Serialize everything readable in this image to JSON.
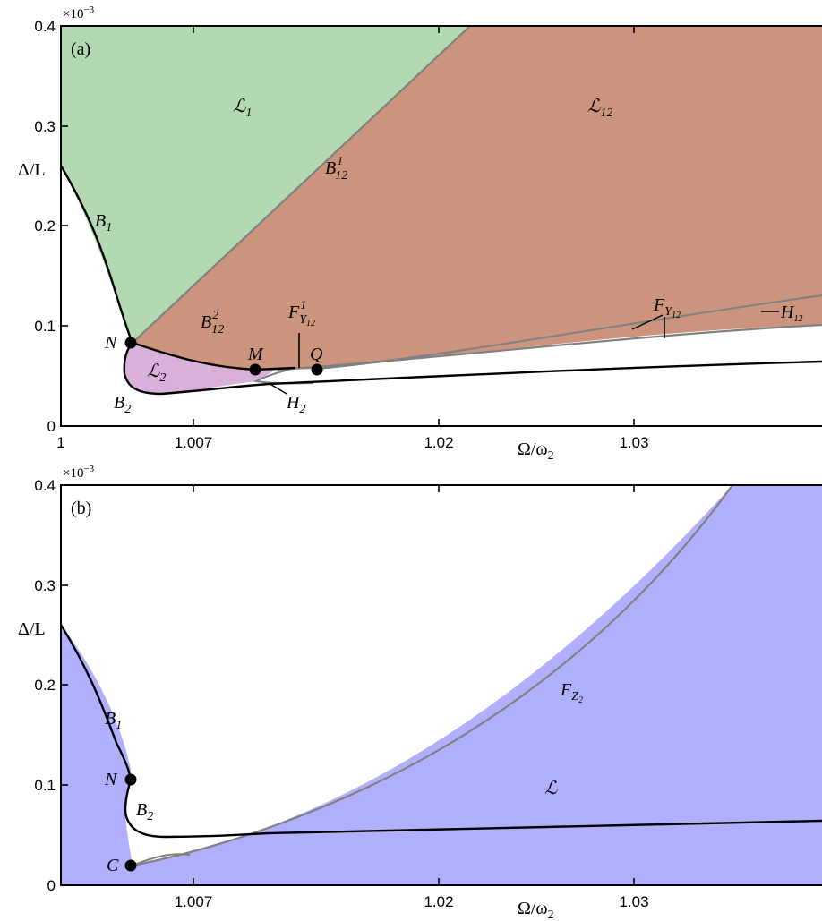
{
  "chart_data": [
    {
      "panel": "(a)",
      "type": "area",
      "x_ticks": [
        "1",
        "1.007",
        "1.02",
        "1.03"
      ],
      "y_ticks": [
        "0",
        "0.1",
        "0.2",
        "0.3",
        "0.4"
      ],
      "y_exponent": "×10",
      "y_exponent_power": "−3",
      "xlabel": "Ω/ω",
      "xlabel_sub": "2",
      "ylabel": "Δ/L",
      "ylim": [
        0,
        0.4
      ],
      "regions": [
        {
          "name": "L1",
          "label": "ℒ",
          "sub": "1",
          "color": "#b3d9b3"
        },
        {
          "name": "L12",
          "label": "ℒ",
          "sub": "12",
          "color": "#cc947d"
        },
        {
          "name": "L2",
          "label": "ℒ",
          "sub": "2",
          "color": "#d9b0d9"
        }
      ],
      "curves": [
        {
          "name": "B1",
          "label": "B",
          "sub": "1",
          "color": "#000000"
        },
        {
          "name": "B2",
          "label": "B",
          "sub": "2",
          "color": "#000000"
        },
        {
          "name": "B12-1",
          "label": "B",
          "sub": "12",
          "sup": "1",
          "color": "#808080"
        },
        {
          "name": "B12-2",
          "label": "B",
          "sub": "12",
          "sup": "2",
          "color": "#000000"
        },
        {
          "name": "FY12",
          "label": "F",
          "sub": "Y",
          "subsub": "12",
          "color": "#808080"
        },
        {
          "name": "FY12-1",
          "label": "F",
          "sub": "Y",
          "subsub": "12",
          "sup": "1",
          "color": "#000000"
        },
        {
          "name": "H2",
          "label": "H",
          "sub": "2",
          "color": "#808080"
        },
        {
          "name": "H12",
          "label": "H",
          "sub": "12",
          "color": "#808080"
        }
      ],
      "points": [
        {
          "label": "N",
          "x": 1.0035,
          "y": 0.081
        },
        {
          "label": "M",
          "x": 1.01,
          "y": 0.0555
        },
        {
          "label": "Q",
          "x": 1.0132,
          "y": 0.0555
        }
      ]
    },
    {
      "panel": "(b)",
      "type": "area",
      "x_ticks": [
        "1.007",
        "1.02",
        "1.03"
      ],
      "y_ticks": [
        "0",
        "0.1",
        "0.2",
        "0.3",
        "0.4"
      ],
      "y_exponent": "×10",
      "y_exponent_power": "−3",
      "xlabel": "Ω/ω",
      "xlabel_sub": "2",
      "ylabel": "Δ/L",
      "ylim": [
        0,
        0.4
      ],
      "regions": [
        {
          "name": "L",
          "label": "ℒ",
          "color": "#b0b0ff"
        }
      ],
      "curves": [
        {
          "name": "B1",
          "label": "B",
          "sub": "1",
          "color": "#000000"
        },
        {
          "name": "B2",
          "label": "B",
          "sub": "2",
          "color": "#000000"
        },
        {
          "name": "FZ2",
          "label": "F",
          "sub": "Z",
          "subsub": "2",
          "color": "#808080"
        }
      ],
      "points": [
        {
          "label": "N",
          "x": 1.0036,
          "y": 0.081
        },
        {
          "label": "C",
          "x": 1.0036,
          "y": 0.019
        }
      ]
    }
  ]
}
